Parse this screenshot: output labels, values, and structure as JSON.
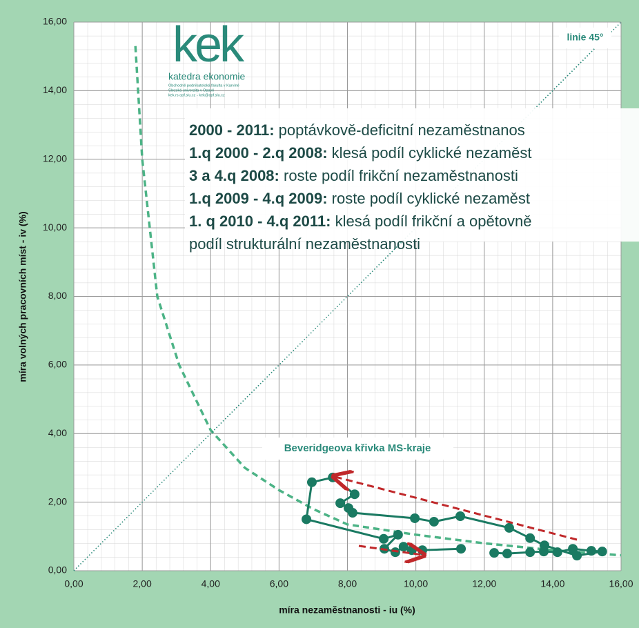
{
  "chart_data": {
    "type": "line",
    "xlabel": "míra nezaměstnanosti - iu (%)",
    "ylabel": "míra volných pracovních míst - iv (%)",
    "xlim": [
      0,
      16
    ],
    "ylim": [
      0,
      16
    ],
    "xticks": [
      {
        "value": 0,
        "label": "0,00"
      },
      {
        "value": 2,
        "label": "2,00"
      },
      {
        "value": 4,
        "label": "4,00"
      },
      {
        "value": 6,
        "label": "6,00"
      },
      {
        "value": 8,
        "label": "8,00"
      },
      {
        "value": 10,
        "label": "10,00"
      },
      {
        "value": 12,
        "label": "12,00"
      },
      {
        "value": 14,
        "label": "14,00"
      },
      {
        "value": 16,
        "label": "16,00"
      }
    ],
    "yticks": [
      {
        "value": 0,
        "label": "0,00"
      },
      {
        "value": 2,
        "label": "2,00"
      },
      {
        "value": 4,
        "label": "4,00"
      },
      {
        "value": 6,
        "label": "6,00"
      },
      {
        "value": 8,
        "label": "8,00"
      },
      {
        "value": 10,
        "label": "10,00"
      },
      {
        "value": 12,
        "label": "12,00"
      },
      {
        "value": 14,
        "label": "14,00"
      },
      {
        "value": 16,
        "label": "16,00"
      }
    ],
    "grid": true,
    "series": [
      {
        "color": "#4cb386",
        "style": "dashed",
        "x": [
          1.8,
          2,
          2.44,
          3.08,
          4,
          5,
          6,
          7,
          8,
          10,
          12,
          14,
          16
        ],
        "values": [
          15.3,
          12,
          8,
          6,
          4.1,
          3,
          2.35,
          1.8,
          1.35,
          1.05,
          0.8,
          0.6,
          0.45
        ]
      },
      {
        "color": "#2a8a7a",
        "style": "dotted",
        "x": [
          0,
          16
        ],
        "values": [
          0,
          16
        ]
      },
      {
        "color": "#1a7a62",
        "style": "markers",
        "x": [
          12.29,
          12.67,
          13.34,
          13.74,
          14.14,
          14.59,
          15.13,
          15.45,
          14.71,
          13.76,
          13.34,
          12.73,
          11.3,
          10.53,
          9.97,
          8.15,
          8.03,
          7.79,
          8.21,
          7.57,
          6.96,
          6.8,
          9.06,
          9.48,
          9.08,
          9.4,
          9.64,
          9.88,
          10.19,
          11.32
        ],
        "values": [
          0.52,
          0.5,
          0.54,
          0.56,
          0.54,
          0.64,
          0.58,
          0.56,
          0.44,
          0.74,
          0.95,
          1.25,
          1.59,
          1.43,
          1.53,
          1.69,
          1.83,
          1.97,
          2.23,
          2.72,
          2.58,
          1.5,
          0.93,
          1.05,
          0.64,
          0.54,
          0.7,
          0.6,
          0.6,
          0.64
        ]
      }
    ],
    "line45_label": "linie 45°",
    "curve_label": "Beveridgeova křivka MS-kraje",
    "logo": {
      "mark": "kek",
      "name": "katedra ekonomie",
      "lines": [
        "Obchodně podnikatelská fakulta v Karviné",
        "Slezská univerzita v Opavě",
        "kek.rs.opf.slu.cz - kek@opf.slu.cz"
      ]
    },
    "notes": [
      {
        "bold": "2000 - 2011:",
        "text": " poptávkově-deficitní nezaměstnanos"
      },
      {
        "bold": "1.q 2000 - 2.q 2008:",
        "text": " klesá podíl cyklické nezaměst"
      },
      {
        "bold": "3 a 4.q 2008:",
        "text": " roste podíl frikční nezaměstnanosti"
      },
      {
        "bold": "1.q 2009 - 4.q 2009:",
        "text": " roste podíl cyklické nezaměst"
      },
      {
        "bold": "1. q 2010 - 4.q 2011:",
        "text": " klesá podíl frikční a opětovně"
      },
      {
        "text": "podíl strukturální nezaměstnanosti"
      }
    ]
  }
}
